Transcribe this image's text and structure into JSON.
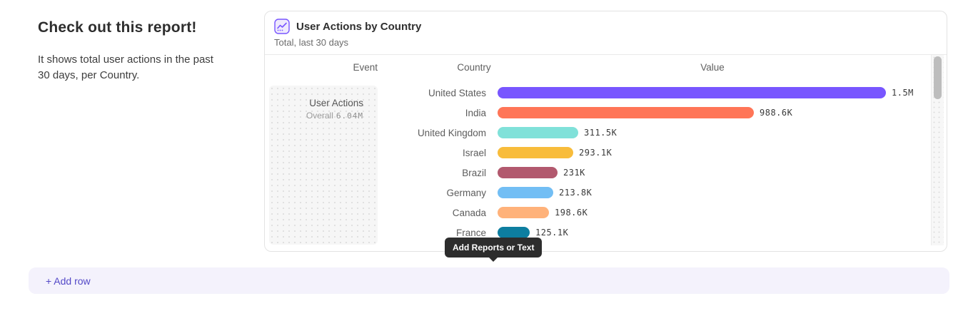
{
  "intro": {
    "heading": "Check out this report!",
    "body": "It shows total user actions in the past 30 days, per Country."
  },
  "report_card": {
    "title": "User Actions by Country",
    "subtitle": "Total, last 30 days",
    "icon": "insights-report-icon",
    "accent_color": "#7856FF",
    "columns": {
      "event": "Event",
      "country": "Country",
      "value": "Value"
    },
    "event_cell": {
      "name": "User Actions",
      "overall_label": "Overall",
      "overall_value": "6.04M"
    }
  },
  "chart_data": {
    "type": "bar",
    "orientation": "horizontal",
    "title": "User Actions by Country",
    "series_name": "User Actions",
    "overall_total": "6.04M",
    "categories": [
      "United States",
      "India",
      "United Kingdom",
      "Israel",
      "Brazil",
      "Germany",
      "Canada",
      "France"
    ],
    "values": [
      1500000,
      988600,
      311500,
      293100,
      231000,
      213800,
      198600,
      125100
    ],
    "display_values": [
      "1.5M",
      "988.6K",
      "311.5K",
      "293.1K",
      "231K",
      "213.8K",
      "198.6K",
      "125.1K"
    ],
    "colors": [
      "#7856FF",
      "#FF7557",
      "#80E1D9",
      "#F8BC3B",
      "#B2596E",
      "#72BEF4",
      "#FFB27A",
      "#0D7EA0"
    ],
    "xlim": [
      0,
      1500000
    ],
    "grid": false,
    "legend": false
  },
  "tooltip": {
    "text": "Add Reports or Text",
    "background": "#2d2d2d",
    "text_color": "#ffffff"
  },
  "add_row": {
    "label": "+ Add row",
    "background": "#f4f2fc",
    "text_color": "#5348c7"
  },
  "scrollbar": {
    "visible": true,
    "thumb_color": "#bdbdbd"
  }
}
